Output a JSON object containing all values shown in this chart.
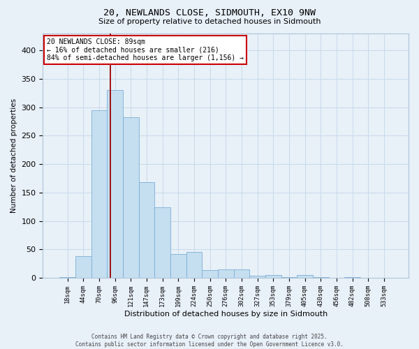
{
  "title": "20, NEWLANDS CLOSE, SIDMOUTH, EX10 9NW",
  "subtitle": "Size of property relative to detached houses in Sidmouth",
  "xlabel": "Distribution of detached houses by size in Sidmouth",
  "ylabel": "Number of detached properties",
  "categories": [
    "18sqm",
    "44sqm",
    "70sqm",
    "96sqm",
    "121sqm",
    "147sqm",
    "173sqm",
    "199sqm",
    "224sqm",
    "250sqm",
    "276sqm",
    "302sqm",
    "327sqm",
    "353sqm",
    "379sqm",
    "405sqm",
    "430sqm",
    "456sqm",
    "482sqm",
    "508sqm",
    "533sqm"
  ],
  "values": [
    2,
    38,
    295,
    330,
    282,
    168,
    124,
    42,
    46,
    14,
    15,
    15,
    4,
    5,
    1,
    5,
    1,
    0,
    1,
    0,
    0
  ],
  "bar_color": "#c5dff0",
  "bar_edge_color": "#7aaed6",
  "grid_color": "#c8daea",
  "background_color": "#e8f0f8",
  "vline_color": "#990000",
  "vline_x": 2.73,
  "annotation_text": "20 NEWLANDS CLOSE: 89sqm\n← 16% of detached houses are smaller (216)\n84% of semi-detached houses are larger (1,156) →",
  "annotation_box_color": "#ffffff",
  "annotation_box_edge": "#cc0000",
  "footer": "Contains HM Land Registry data © Crown copyright and database right 2025.\nContains public sector information licensed under the Open Government Licence v3.0.",
  "ylim": [
    0,
    430
  ],
  "yticks": [
    0,
    50,
    100,
    150,
    200,
    250,
    300,
    350,
    400
  ]
}
